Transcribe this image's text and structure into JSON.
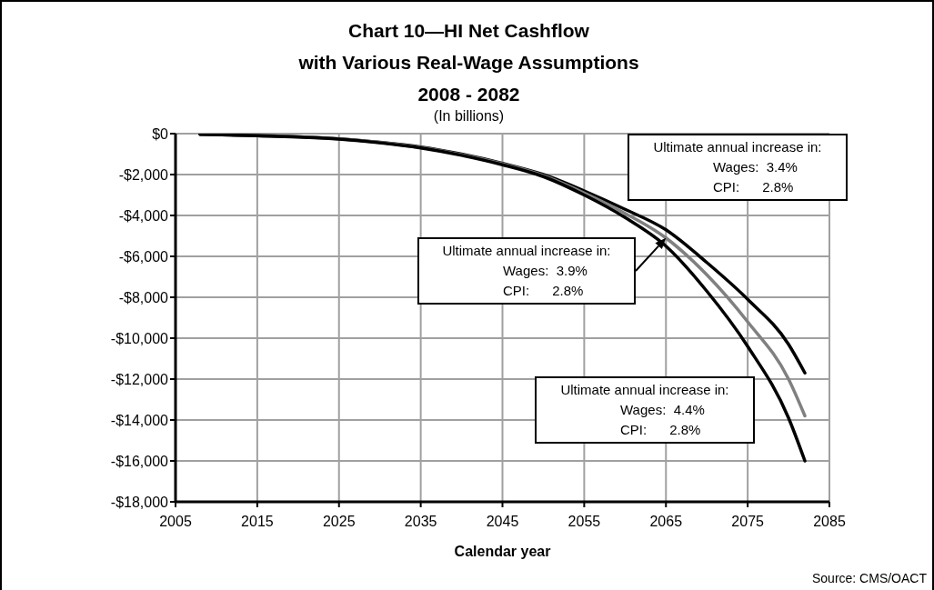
{
  "chart_data": {
    "type": "line",
    "title": "Chart 10—HI Net Cashflow\nwith Various Real-Wage Assumptions\n2008 - 2082",
    "subtitle": "(In billions)",
    "xlabel": "Calendar year",
    "x": [
      2008,
      2015,
      2020,
      2025,
      2030,
      2035,
      2040,
      2045,
      2050,
      2055,
      2060,
      2065,
      2070,
      2075,
      2080,
      2082
    ],
    "series": [
      {
        "color": "#000000",
        "values": [
          -30,
          -100,
          -150,
          -250,
          -420,
          -650,
          -1000,
          -1450,
          -2000,
          -2800,
          -3700,
          -4700,
          -6300,
          -8100,
          -10300,
          -11700
        ]
      },
      {
        "color": "#808080",
        "values": [
          -30,
          -100,
          -160,
          -260,
          -430,
          -680,
          -1030,
          -1480,
          -2050,
          -2900,
          -3900,
          -5100,
          -6900,
          -9200,
          -12000,
          -13800
        ]
      },
      {
        "color": "#000000",
        "values": [
          -30,
          -100,
          -170,
          -270,
          -450,
          -700,
          -1060,
          -1520,
          -2100,
          -3000,
          -4100,
          -5500,
          -7700,
          -10400,
          -13900,
          -16000
        ]
      }
    ],
    "xlim": [
      2005,
      2085
    ],
    "xticks": [
      2005,
      2015,
      2025,
      2035,
      2045,
      2055,
      2065,
      2075,
      2085
    ],
    "ylim": [
      -18000,
      0
    ],
    "yticks": [
      {
        "value": -18000,
        "label": "-$18,000"
      },
      {
        "value": -16000,
        "label": "-$16,000"
      },
      {
        "value": -14000,
        "label": "-$14,000"
      },
      {
        "value": -12000,
        "label": "-$12,000"
      },
      {
        "value": -10000,
        "label": "-$10,000"
      },
      {
        "value": -8000,
        "label": "-$8,000"
      },
      {
        "value": -6000,
        "label": "-$6,000"
      },
      {
        "value": -4000,
        "label": "-$4,000"
      },
      {
        "value": -2000,
        "label": "-$2,000"
      },
      {
        "value": 0,
        "label": "$0"
      }
    ],
    "grid": true,
    "legend": false,
    "annotations": [
      "Ultimate annual increase in:\nWages:  3.4%\nCPI:      2.8%",
      "Ultimate annual increase in:\nWages:  3.9%\nCPI:      2.8%",
      "Ultimate annual increase in:\nWages:  4.4%\nCPI:      2.8%",
      "Source: CMS/OACT"
    ]
  }
}
